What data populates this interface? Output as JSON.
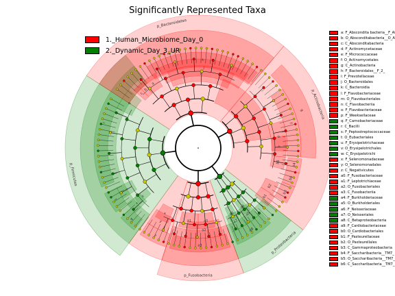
{
  "title": "Significantly Represented Taxa",
  "colors": {
    "red": "#ff0000",
    "green": "#007f00",
    "yellow": "#c8c800"
  },
  "groups": [
    {
      "label": "1._Human_Microbiome_Day_0",
      "color": "#ff0000"
    },
    {
      "label": "2._Dynamic_Day_3_UR",
      "color": "#007f00"
    }
  ],
  "sector_labels": [
    {
      "text": "p_Bacteroidetes",
      "group": 0,
      "angle": -12
    },
    {
      "text": "p_Actinobacteria",
      "group": 0,
      "angle": 70
    },
    {
      "text": "p_Proteobacteria",
      "group": 1,
      "angle": 138
    },
    {
      "text": "p_Fusobacteria",
      "group": 0,
      "angle": 180
    },
    {
      "text": "p_Firmicutes",
      "group": 1,
      "angle": 258
    }
  ],
  "legend": [
    {
      "text": "a: F_Abscondita bacteria__F_Abscondita bacteria_unclassified",
      "group": 0
    },
    {
      "text": "b: O_Absconditabacteria__O_Absconditabacteria_unclassified",
      "group": 0
    },
    {
      "text": "c: C_Absconditabacteria",
      "group": 0
    },
    {
      "text": "d: F_Actinomycetaceae",
      "group": 0
    },
    {
      "text": "e: F_Micrococcaceae",
      "group": 0
    },
    {
      "text": "f: O_Actinomycetales",
      "group": 0
    },
    {
      "text": "g: C_Actinobacteria",
      "group": 0
    },
    {
      "text": "h: F_Bacteroidales__F_2_",
      "group": 0
    },
    {
      "text": "i: F_Prevotellaceae",
      "group": 0
    },
    {
      "text": "j: O_Bacteroidales",
      "group": 0
    },
    {
      "text": "k: C_Bacteroidia",
      "group": 0
    },
    {
      "text": "l: F_Flavobacteriaceae",
      "group": 0
    },
    {
      "text": "m: O_Flavobacteriales",
      "group": 0
    },
    {
      "text": "n: C_Flavobacteriia",
      "group": 0
    },
    {
      "text": "o: F_Flavobacteriaceae",
      "group": 0
    },
    {
      "text": "p: F_Weeksellaceae",
      "group": 0
    },
    {
      "text": "q: F_Carnobacteriaceae",
      "group": 1
    },
    {
      "text": "r: C_Bacilli",
      "group": 1
    },
    {
      "text": "s: F_Peptostreptococcaceae",
      "group": 1
    },
    {
      "text": "t: O_Eubacteriales",
      "group": 1
    },
    {
      "text": "u: F_Erysipelotrichaceae",
      "group": 1
    },
    {
      "text": "v: O_Erysipelotrichales",
      "group": 1
    },
    {
      "text": "w: C_Erysipelotrichi",
      "group": 1
    },
    {
      "text": "x: F_Selenomonadaceae",
      "group": 0
    },
    {
      "text": "y: O_Selenomonadales",
      "group": 0
    },
    {
      "text": "z: C_Negativicutes",
      "group": 0
    },
    {
      "text": "a0: F_Fusobacteriaceae",
      "group": 0
    },
    {
      "text": "a1: F_Leptotrichiaceae",
      "group": 0
    },
    {
      "text": "a2: O_Fusobacteriales",
      "group": 0
    },
    {
      "text": "a3: C_Fusobacteriia",
      "group": 0
    },
    {
      "text": "a4: F_Burkholderiaceae",
      "group": 1
    },
    {
      "text": "a5: O_Burkholderiales",
      "group": 1
    },
    {
      "text": "a6: F_Neisseriaceae",
      "group": 1
    },
    {
      "text": "a7: O_Neisseriales",
      "group": 1
    },
    {
      "text": "a8: C_Betaproteobacteria",
      "group": 1
    },
    {
      "text": "a9: F_Cardiobacteriaceae",
      "group": 0
    },
    {
      "text": "b0: O_Cardiobacteriales",
      "group": 0
    },
    {
      "text": "b1: F_Pasteurellaceae",
      "group": 0
    },
    {
      "text": "b2: O_Pasteurellales",
      "group": 0
    },
    {
      "text": "b3: C_Gammaproteobacteria",
      "group": 0
    },
    {
      "text": "b4: F_Saccharibacteria__TM7_",
      "group": 0
    },
    {
      "text": "b5: O_Saccharibacteria__TM7_",
      "group": 0
    },
    {
      "text": "b6: C_Saccharibacteria__TM7_",
      "group": 0
    }
  ],
  "red_arcs": [
    {
      "label": "",
      "a0": -57,
      "a1": 40,
      "r0": 120,
      "r1": 172
    },
    {
      "label": "",
      "a0": 20,
      "a1": 82,
      "r0": 70,
      "r1": 107
    },
    {
      "label": "k",
      "a0": -32,
      "a1": 38,
      "r0": 118,
      "r1": 140
    },
    {
      "label": "j",
      "a0": -26,
      "a1": 34,
      "r0": 105,
      "r1": 130
    },
    {
      "label": "i",
      "a0": -22,
      "a1": 26,
      "r0": 97,
      "r1": 120
    },
    {
      "label": "a",
      "a0": -40,
      "a1": -30,
      "r0": 104,
      "r1": 126
    },
    {
      "label": "b",
      "a0": -44,
      "a1": -40,
      "r0": 104,
      "r1": 126
    },
    {
      "label": "c",
      "a0": -48,
      "a1": -44,
      "r0": 104,
      "r1": 126
    },
    {
      "label": "g",
      "a0": 45,
      "a1": 95,
      "r0": 150,
      "r1": 172
    },
    {
      "label": "f",
      "a0": 55,
      "a1": 95,
      "r0": 130,
      "r1": 150
    },
    {
      "label": "d",
      "a0": 72,
      "a1": 92,
      "r0": 107,
      "r1": 130
    },
    {
      "label": "e",
      "a0": 82,
      "a1": 96,
      "r0": 108,
      "r1": 128
    },
    {
      "label": "b4",
      "a0": 96,
      "a1": 104,
      "r0": 132,
      "r1": 152
    },
    {
      "label": "b5",
      "a0": 96,
      "a1": 104,
      "r0": 108,
      "r1": 128
    },
    {
      "label": "b6",
      "a0": 104,
      "a1": 112,
      "r0": 132,
      "r1": 152
    },
    {
      "label": "b3",
      "a0": 112,
      "a1": 122,
      "r0": 132,
      "r1": 152
    },
    {
      "label": "b2",
      "a0": 114,
      "a1": 122,
      "r0": 108,
      "r1": 128
    },
    {
      "label": "b1",
      "a0": 122,
      "a1": 130,
      "r0": 108,
      "r1": 132
    },
    {
      "label": "",
      "a0": 160,
      "a1": 198,
      "r0": 120,
      "r1": 172
    },
    {
      "label": "a3",
      "a0": 162,
      "a1": 196,
      "r0": 132,
      "r1": 152
    },
    {
      "label": "a2",
      "a0": 164,
      "a1": 188,
      "r0": 108,
      "r1": 132
    },
    {
      "label": "a0",
      "a0": 168,
      "a1": 180,
      "r0": 96,
      "r1": 118
    },
    {
      "label": "a1",
      "a0": 180,
      "a1": 194,
      "r0": 96,
      "r1": 118
    },
    {
      "label": "z",
      "a0": 198,
      "a1": 214,
      "r0": 132,
      "r1": 152
    },
    {
      "label": "y",
      "a0": 200,
      "a1": 214,
      "r0": 108,
      "r1": 132
    },
    {
      "label": "x",
      "a0": 202,
      "a1": 212,
      "r0": 96,
      "r1": 118
    }
  ],
  "green_arcs": [
    {
      "label": "",
      "a0": 128,
      "a1": 160,
      "r0": 120,
      "r1": 172
    },
    {
      "label": "a8",
      "a0": 136,
      "a1": 158,
      "r0": 132,
      "r1": 152
    },
    {
      "label": "a5",
      "a0": 138,
      "a1": 148,
      "r0": 108,
      "r1": 132
    },
    {
      "label": "a7",
      "a0": 148,
      "a1": 158,
      "r0": 108,
      "r1": 132
    },
    {
      "label": "a4",
      "a0": 140,
      "a1": 146,
      "r0": 96,
      "r1": 118
    },
    {
      "label": "a6",
      "a0": 150,
      "a1": 156,
      "r0": 96,
      "r1": 118
    },
    {
      "label": "",
      "a0": 216,
      "a1": 322,
      "r0": 120,
      "r1": 172
    },
    {
      "label": "w",
      "a0": 218,
      "a1": 228,
      "r0": 132,
      "r1": 152
    },
    {
      "label": "v",
      "a0": 224,
      "a1": 232,
      "r0": 108,
      "r1": 132
    },
    {
      "label": "u",
      "a0": 226,
      "a1": 232,
      "r0": 96,
      "r1": 118
    },
    {
      "label": "t",
      "a0": 232,
      "a1": 244,
      "r0": 132,
      "r1": 152
    },
    {
      "label": "s",
      "a0": 236,
      "a1": 244,
      "r0": 108,
      "r1": 132
    },
    {
      "label": "r",
      "a0": 248,
      "a1": 322,
      "r0": 132,
      "r1": 152
    },
    {
      "label": "q",
      "a0": 296,
      "a1": 310,
      "r0": 108,
      "r1": 132
    }
  ]
}
